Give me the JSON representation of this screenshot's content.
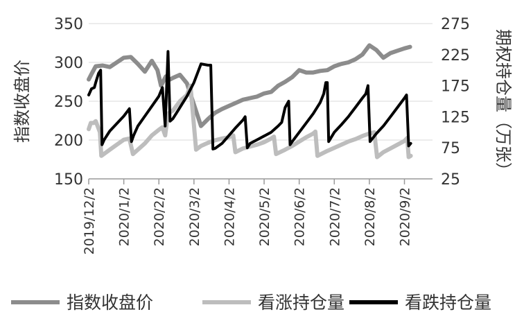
{
  "chart_data": {
    "type": "line",
    "title": "",
    "ylabel_left": "指数收盘价",
    "ylabel_right": "期权持仓量（万张）",
    "ylim_left": [
      150,
      350
    ],
    "ylim_right": [
      25,
      275
    ],
    "yticks_left": [
      "150",
      "200",
      "250",
      "300",
      "350"
    ],
    "yticks_right": [
      "25",
      "75",
      "125",
      "175",
      "225",
      "275"
    ],
    "xticks": [
      "2019/12/2",
      "2020/1/2",
      "2020/2/2",
      "2020/3/2",
      "2020/4/2",
      "2020/5/2",
      "2020/6/2",
      "2020/7/2",
      "2020/8/2",
      "2020/9/2"
    ],
    "grid": true,
    "legend_position": "bottom",
    "series": [
      {
        "name": "指数收盘价",
        "axis": "left",
        "color": "#8c8c8c",
        "points": [
          [
            0,
            278
          ],
          [
            0.4,
            285
          ],
          [
            1,
            295
          ],
          [
            2,
            296
          ],
          [
            3,
            294
          ],
          [
            4,
            300
          ],
          [
            5,
            306
          ],
          [
            6,
            307
          ],
          [
            7,
            298
          ],
          [
            8,
            288
          ],
          [
            9,
            302
          ],
          [
            9.8,
            290
          ],
          [
            10.3,
            270
          ],
          [
            11,
            282
          ],
          [
            11.6,
            278
          ],
          [
            12,
            280
          ],
          [
            13,
            284
          ],
          [
            14,
            273
          ],
          [
            15.2,
            240
          ],
          [
            16,
            218
          ],
          [
            17,
            227
          ],
          [
            18,
            235
          ],
          [
            19,
            240
          ],
          [
            20,
            244
          ],
          [
            21,
            248
          ],
          [
            22,
            252
          ],
          [
            23,
            254
          ],
          [
            24,
            256
          ],
          [
            25,
            260
          ],
          [
            26,
            262
          ],
          [
            27,
            270
          ],
          [
            28,
            275
          ],
          [
            29,
            281
          ],
          [
            30,
            290
          ],
          [
            31,
            287
          ],
          [
            32,
            287
          ],
          [
            33,
            289
          ],
          [
            34,
            290
          ],
          [
            35,
            295
          ],
          [
            36,
            298
          ],
          [
            37,
            300
          ],
          [
            38,
            304
          ],
          [
            39,
            310
          ],
          [
            40,
            322
          ],
          [
            41,
            316
          ],
          [
            42,
            306
          ],
          [
            43,
            312
          ],
          [
            44,
            315
          ],
          [
            45,
            318
          ],
          [
            45.8,
            320
          ]
        ]
      },
      {
        "name": "看涨持仓量",
        "axis": "right",
        "color": "#bdbdbd",
        "points": [
          [
            0,
            105
          ],
          [
            0.3,
            115
          ],
          [
            0.7,
            115
          ],
          [
            1,
            118
          ],
          [
            1.6,
            100
          ],
          [
            1.8,
            62
          ],
          [
            3,
            72
          ],
          [
            4,
            80
          ],
          [
            5,
            88
          ],
          [
            5.8,
            90
          ],
          [
            6.3,
            65
          ],
          [
            7,
            72
          ],
          [
            8,
            82
          ],
          [
            9,
            95
          ],
          [
            10,
            104
          ],
          [
            10.5,
            108
          ],
          [
            10.9,
            95
          ],
          [
            11.3,
            130
          ],
          [
            12,
            135
          ],
          [
            13,
            150
          ],
          [
            14,
            160
          ],
          [
            14.5,
            175
          ],
          [
            15.3,
            72
          ],
          [
            16,
            78
          ],
          [
            17,
            83
          ],
          [
            18,
            87
          ],
          [
            19,
            90
          ],
          [
            20,
            92
          ],
          [
            20.6,
            95
          ],
          [
            20.9,
            68
          ],
          [
            22,
            74
          ],
          [
            23,
            77
          ],
          [
            24,
            80
          ],
          [
            25,
            84
          ],
          [
            26,
            90
          ],
          [
            26.4,
            93
          ],
          [
            26.7,
            65
          ],
          [
            28,
            72
          ],
          [
            29,
            78
          ],
          [
            30,
            85
          ],
          [
            31,
            92
          ],
          [
            32,
            98
          ],
          [
            32.3,
            101
          ],
          [
            32.6,
            62
          ],
          [
            34,
            70
          ],
          [
            35,
            75
          ],
          [
            36,
            80
          ],
          [
            37,
            85
          ],
          [
            38,
            89
          ],
          [
            39,
            94
          ],
          [
            40,
            98
          ],
          [
            40.7,
            100
          ],
          [
            41.1,
            60
          ],
          [
            42,
            68
          ],
          [
            43,
            74
          ],
          [
            44,
            80
          ],
          [
            45,
            86
          ],
          [
            45.4,
            91
          ],
          [
            45.6,
            60
          ],
          [
            45.9,
            62
          ]
        ]
      },
      {
        "name": "看跌持仓量",
        "axis": "right",
        "color": "#000000",
        "points": [
          [
            0,
            160
          ],
          [
            0.4,
            170
          ],
          [
            0.8,
            172
          ],
          [
            1,
            180
          ],
          [
            1.4,
            195
          ],
          [
            1.7,
            200
          ],
          [
            1.9,
            80
          ],
          [
            2.2,
            88
          ],
          [
            3,
            102
          ],
          [
            4,
            114
          ],
          [
            5,
            126
          ],
          [
            5.8,
            138
          ],
          [
            6.1,
            85
          ],
          [
            6.4,
            95
          ],
          [
            7,
            110
          ],
          [
            8,
            126
          ],
          [
            9,
            142
          ],
          [
            10,
            158
          ],
          [
            10.5,
            172
          ],
          [
            10.9,
            110
          ],
          [
            11.3,
            230
          ],
          [
            11.6,
            118
          ],
          [
            12,
            122
          ],
          [
            13,
            140
          ],
          [
            14,
            158
          ],
          [
            15,
            180
          ],
          [
            16,
            210
          ],
          [
            17,
            208
          ],
          [
            17.4,
            208
          ],
          [
            17.7,
            73
          ],
          [
            18,
            74
          ],
          [
            19,
            82
          ],
          [
            20,
            95
          ],
          [
            21,
            108
          ],
          [
            22,
            120
          ],
          [
            22.3,
            125
          ],
          [
            22.6,
            75
          ],
          [
            23,
            82
          ],
          [
            24,
            88
          ],
          [
            25,
            94
          ],
          [
            26,
            100
          ],
          [
            27,
            110
          ],
          [
            27.5,
            116
          ],
          [
            28,
            140
          ],
          [
            28.5,
            150
          ],
          [
            28.7,
            80
          ],
          [
            29,
            85
          ],
          [
            30,
            100
          ],
          [
            31,
            115
          ],
          [
            32,
            130
          ],
          [
            33,
            148
          ],
          [
            33.5,
            162
          ],
          [
            33.8,
            180
          ],
          [
            34,
            180
          ],
          [
            34.2,
            85
          ],
          [
            35,
            100
          ],
          [
            36,
            112
          ],
          [
            37,
            125
          ],
          [
            38,
            140
          ],
          [
            39,
            155
          ],
          [
            39.5,
            162
          ],
          [
            39.8,
            175
          ],
          [
            40.1,
            85
          ],
          [
            41,
            98
          ],
          [
            42,
            110
          ],
          [
            43,
            125
          ],
          [
            44,
            140
          ],
          [
            45,
            155
          ],
          [
            45.3,
            160
          ],
          [
            45.6,
            78
          ],
          [
            45.9,
            82
          ]
        ]
      }
    ]
  }
}
